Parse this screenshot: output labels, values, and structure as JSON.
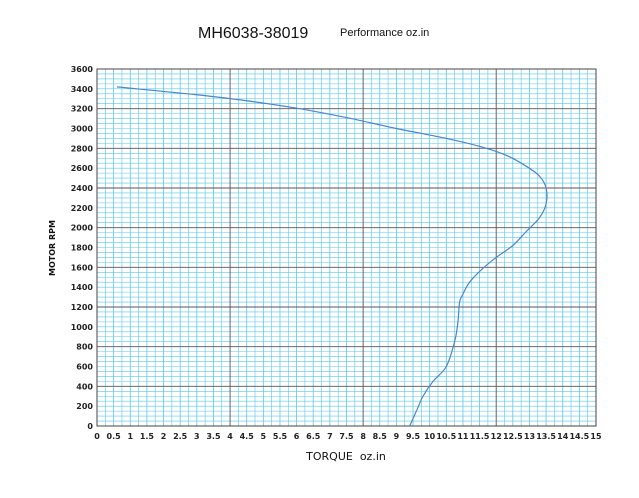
{
  "chart_data": {
    "type": "line",
    "title": "MH6038-38019",
    "subtitle": "Performance oz.in",
    "xlabel": "TORQUE  oz.in",
    "ylabel": "MOTOR RPM",
    "xlim": [
      0,
      15
    ],
    "ylim": [
      0,
      3600
    ],
    "x_ticks": [
      "0",
      "0.5",
      "1",
      "1.5",
      "2",
      "2.5",
      "3",
      "3.5",
      "4",
      "4.5",
      "5",
      "5.5",
      "6",
      "6.5",
      "7",
      "7.5",
      "8",
      "8.5",
      "9",
      "9.5",
      "10",
      "10.5",
      "11",
      "11.5",
      "12",
      "12.5",
      "13",
      "13.5",
      "14",
      "14.5",
      "15"
    ],
    "y_ticks": [
      "0",
      "200",
      "400",
      "600",
      "800",
      "1000",
      "1200",
      "1400",
      "1600",
      "1800",
      "2000",
      "2200",
      "2400",
      "2600",
      "2800",
      "3000",
      "3200",
      "3400",
      "3600"
    ],
    "grid": true,
    "colors": {
      "grid_minor": "#5bc8e8",
      "grid_major": "#555555",
      "curve": "#4a86c8",
      "background": "#ffffff"
    },
    "series": [
      {
        "points": [
          [
            0.6,
            3420
          ],
          [
            1.5,
            3390
          ],
          [
            3.0,
            3340
          ],
          [
            4.5,
            3280
          ],
          [
            6.0,
            3205
          ],
          [
            7.5,
            3110
          ],
          [
            9.0,
            3000
          ],
          [
            10.5,
            2900
          ],
          [
            11.5,
            2820
          ],
          [
            12.3,
            2730
          ],
          [
            12.9,
            2620
          ],
          [
            13.3,
            2520
          ],
          [
            13.5,
            2400
          ],
          [
            13.5,
            2240
          ],
          [
            13.3,
            2100
          ],
          [
            12.9,
            1960
          ],
          [
            12.5,
            1820
          ],
          [
            12.0,
            1700
          ],
          [
            11.6,
            1590
          ],
          [
            11.2,
            1450
          ],
          [
            11.0,
            1330
          ],
          [
            10.9,
            1250
          ],
          [
            10.85,
            1050
          ],
          [
            10.75,
            850
          ],
          [
            10.5,
            600
          ],
          [
            10.1,
            450
          ],
          [
            9.8,
            300
          ],
          [
            9.6,
            150
          ],
          [
            9.4,
            0
          ]
        ]
      }
    ]
  }
}
